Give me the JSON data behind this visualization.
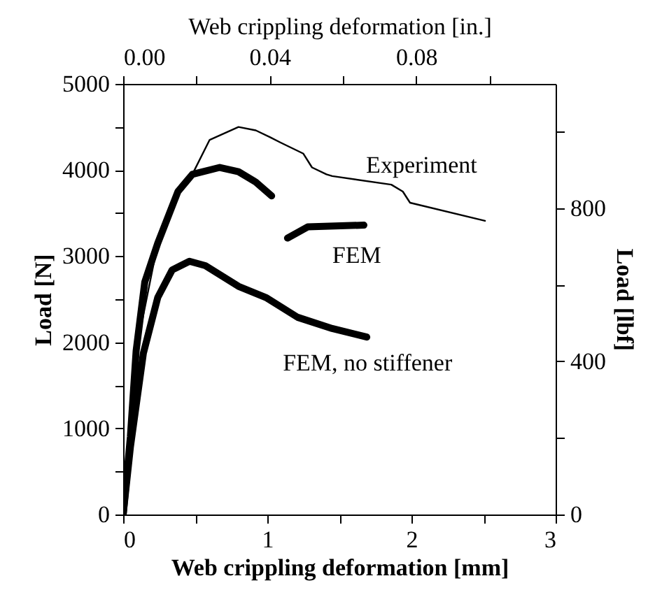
{
  "chart_data": {
    "type": "line",
    "xlabel": "Web crippling deformation [mm]",
    "ylabel": "Load [N]",
    "x2label": "Web crippling deformation [in.]",
    "y2label": "Load [lbf]",
    "xlim": [
      0,
      3
    ],
    "xticks": [
      0,
      {
        "value": 0.5,
        "label": null
      },
      1,
      {
        "value": 1.5,
        "label": null
      },
      2,
      {
        "value": 2.5,
        "label": null
      },
      3
    ],
    "ylim": [
      0,
      5000
    ],
    "yticks": [
      0,
      {
        "value": 500,
        "label": null
      },
      1000,
      {
        "value": 1500,
        "label": null
      },
      2000,
      {
        "value": 2500,
        "label": null
      },
      3000,
      {
        "value": 3500,
        "label": null
      },
      4000,
      {
        "value": 4500,
        "label": null
      },
      5000
    ],
    "x2lim": [
      0,
      0.1181
    ],
    "x2ticks": [
      {
        "value": 0,
        "label": "0.00"
      },
      {
        "value": 0.02,
        "label": null
      },
      0.04,
      {
        "value": 0.06,
        "label": null
      },
      0.08,
      {
        "value": 0.1,
        "label": null
      }
    ],
    "y2lim": [
      0,
      1124
    ],
    "y2ticks": [
      0,
      {
        "value": 200,
        "label": null
      },
      400,
      {
        "value": 600,
        "label": null
      },
      800,
      {
        "value": 1000,
        "label": null
      }
    ],
    "grid": false,
    "line_style": "solid",
    "series": [
      {
        "color": "#000000",
        "x": [
          0,
          0.09,
          0.24,
          0.38,
          0.48,
          0.6,
          0.8,
          0.92,
          1.02,
          1.09,
          1.25,
          1.31,
          1.41,
          1.45,
          1.86,
          1.94,
          1.99,
          2.51
        ],
        "values": [
          0,
          1900,
          3150,
          3750,
          3950,
          4350,
          4500,
          4460,
          4380,
          4320,
          4190,
          4030,
          3950,
          3930,
          3830,
          3750,
          3620,
          3410
        ]
      },
      {
        "color": "#000000",
        "x": [
          0,
          0.05,
          0.09,
          0.15,
          0.24,
          0.38,
          0.48,
          0.67,
          0.8,
          0.92,
          1.03
        ],
        "values": [
          0,
          900,
          1900,
          2700,
          3150,
          3750,
          3950,
          4030,
          3980,
          3860,
          3700
        ]
      },
      {
        "color": "#000000",
        "x": [
          1.14,
          1.28,
          1.67
        ],
        "values": [
          3210,
          3340,
          3360
        ]
      },
      {
        "color": "#000000",
        "x": [
          0,
          0.05,
          0.14,
          0.24,
          0.34,
          0.46,
          0.57,
          0.8,
          0.99,
          1.21,
          1.45,
          1.69
        ],
        "values": [
          0,
          780,
          1870,
          2520,
          2840,
          2940,
          2890,
          2650,
          2520,
          2290,
          2160,
          2060
        ]
      }
    ],
    "annotations": [
      "Experiment",
      "FEM",
      "FEM, no stiffener"
    ]
  }
}
